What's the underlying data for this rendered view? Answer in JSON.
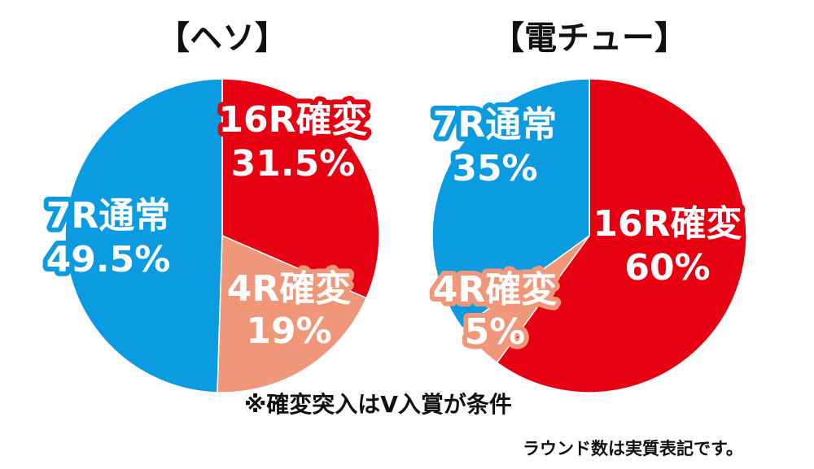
{
  "chart_data": [
    {
      "type": "pie",
      "title": "【ヘソ】",
      "slices": [
        {
          "name": "16R確変",
          "value": 31.5,
          "label": "31.5%",
          "color": "#e60012"
        },
        {
          "name": "4R確変",
          "value": 19,
          "label": "19%",
          "color": "#f0977a"
        },
        {
          "name": "7R通常",
          "value": 49.5,
          "label": "49.5%",
          "color": "#0a9be0"
        }
      ]
    },
    {
      "type": "pie",
      "title": "【電チュー】",
      "slices": [
        {
          "name": "16R確変",
          "value": 60,
          "label": "60%",
          "color": "#e60012"
        },
        {
          "name": "4R確変",
          "value": 5,
          "label": "5%",
          "color": "#f0977a"
        },
        {
          "name": "7R通常",
          "value": 35,
          "label": "35%",
          "color": "#0a9be0"
        }
      ]
    }
  ],
  "notes": {
    "main": "※確変突入はV入賞が条件",
    "sub": "ラウンド数は実質表記です。"
  }
}
